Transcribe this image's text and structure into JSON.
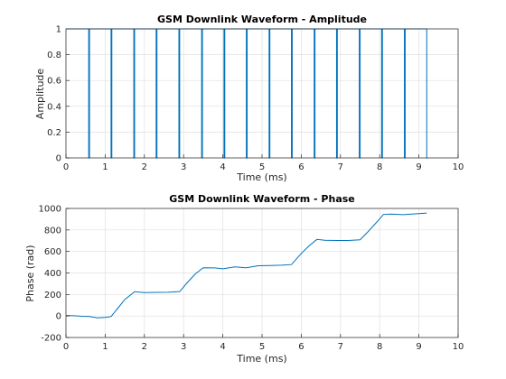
{
  "colors": {
    "series": "#0072BD",
    "grid": "#dfdfdf",
    "axis": "#262626"
  },
  "chart_data": [
    {
      "type": "line",
      "title": "GSM Downlink Waveform - Amplitude",
      "xlabel": "Time (ms)",
      "ylabel": "Amplitude",
      "xlim": [
        0,
        10
      ],
      "ylim": [
        0,
        1
      ],
      "xticks": [
        "0",
        "1",
        "2",
        "3",
        "4",
        "5",
        "6",
        "7",
        "8",
        "9",
        "10"
      ],
      "yticks": [
        "0",
        "0.2",
        "0.4",
        "0.6",
        "0.8",
        "1"
      ],
      "grid": true,
      "series": [
        {
          "values_description": "amplitude is 1 during bursts and drops to 0 at burst gaps",
          "x": [
            0.0,
            0.58,
            0.58,
            0.6,
            0.6,
            1.15,
            1.15,
            1.17,
            1.17,
            1.73,
            1.73,
            1.75,
            1.75,
            2.3,
            2.3,
            2.32,
            2.32,
            2.88,
            2.88,
            2.9,
            2.9,
            3.46,
            3.46,
            3.48,
            3.48,
            4.03,
            4.03,
            4.05,
            4.05,
            4.6,
            4.6,
            4.62,
            4.62,
            5.18,
            5.18,
            5.2,
            5.2,
            5.75,
            5.75,
            5.77,
            5.77,
            6.33,
            6.33,
            6.35,
            6.35,
            6.9,
            6.9,
            6.92,
            6.92,
            7.48,
            7.48,
            7.5,
            7.5,
            8.05,
            8.05,
            8.07,
            8.07,
            8.63,
            8.63,
            8.65,
            8.65,
            9.2,
            9.2,
            9.22
          ],
          "y": [
            1,
            1,
            0,
            0,
            1,
            1,
            0,
            0,
            1,
            1,
            0,
            0,
            1,
            1,
            0,
            0,
            1,
            1,
            0,
            0,
            1,
            1,
            0,
            0,
            1,
            1,
            0,
            0,
            1,
            1,
            0,
            0,
            1,
            1,
            0,
            0,
            1,
            1,
            0,
            0,
            1,
            1,
            0,
            0,
            1,
            1,
            0,
            0,
            1,
            1,
            0,
            0,
            1,
            1,
            0,
            0,
            1,
            1,
            0,
            0,
            1,
            1,
            0,
            0
          ]
        }
      ]
    },
    {
      "type": "line",
      "title": "GSM Downlink Waveform - Phase",
      "xlabel": "Time (ms)",
      "ylabel": "Phase (rad)",
      "xlim": [
        0,
        10
      ],
      "ylim": [
        -200,
        1000
      ],
      "xticks": [
        "0",
        "1",
        "2",
        "3",
        "4",
        "5",
        "6",
        "7",
        "8",
        "9",
        "10"
      ],
      "yticks": [
        "-200",
        "0",
        "200",
        "400",
        "600",
        "800",
        "1000"
      ],
      "grid": true,
      "series": [
        {
          "x": [
            0.0,
            0.2,
            0.4,
            0.6,
            0.8,
            1.0,
            1.15,
            1.3,
            1.5,
            1.75,
            2.0,
            2.3,
            2.6,
            2.9,
            3.1,
            3.3,
            3.5,
            3.8,
            4.0,
            4.3,
            4.6,
            4.9,
            5.2,
            5.5,
            5.75,
            6.0,
            6.2,
            6.4,
            6.6,
            6.9,
            7.2,
            7.5,
            7.7,
            7.9,
            8.1,
            8.3,
            8.6,
            8.9,
            9.2
          ],
          "y": [
            5,
            0,
            -5,
            -5,
            -15,
            -10,
            -5,
            60,
            150,
            225,
            220,
            222,
            222,
            225,
            310,
            390,
            450,
            450,
            440,
            455,
            445,
            465,
            470,
            475,
            480,
            580,
            650,
            710,
            705,
            705,
            705,
            708,
            780,
            860,
            945,
            950,
            945,
            950,
            955
          ]
        }
      ]
    }
  ]
}
